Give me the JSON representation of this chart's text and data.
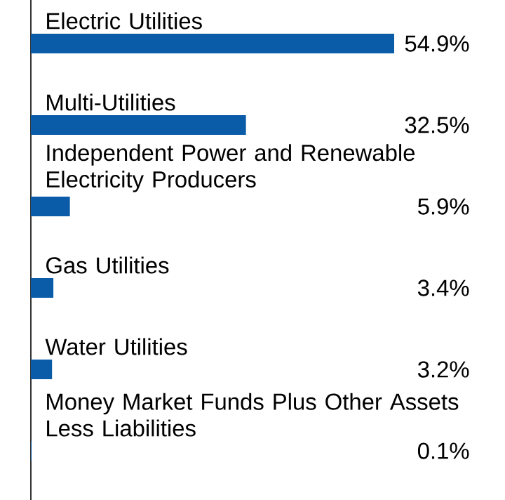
{
  "chart_data": {
    "type": "bar",
    "orientation": "horizontal",
    "categories": [
      "Electric Utilities",
      "Multi-Utilities",
      "Independent Power and Renewable Electricity Producers",
      "Gas Utilities",
      "Water Utilities",
      "Money Market Funds Plus Other Assets Less Liabilities"
    ],
    "values": [
      54.9,
      32.5,
      5.9,
      3.4,
      3.2,
      0.1
    ],
    "value_labels": [
      "54.9%",
      "32.5%",
      "5.9%",
      "3.4%",
      "3.2%",
      "0.1%"
    ],
    "color": "#0b5ca8"
  }
}
